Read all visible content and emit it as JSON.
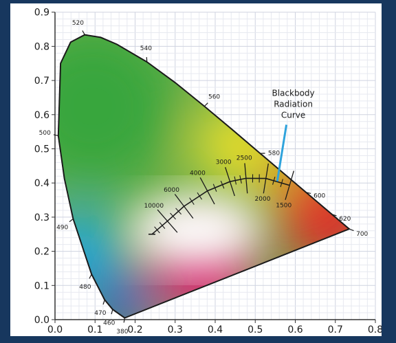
{
  "chart_data": {
    "type": "scatter",
    "title": "",
    "xlabel": "",
    "ylabel": "",
    "xlim": [
      0,
      0.8
    ],
    "ylim": [
      0,
      0.9
    ],
    "grid": true,
    "x_ticks": [
      "0.0",
      "0.1",
      "0.2",
      "0.3",
      "0.4",
      "0.5",
      "0.6",
      "0.7",
      "0.8"
    ],
    "y_ticks": [
      "0.0",
      "0.1",
      "0.2",
      "0.3",
      "0.4",
      "0.5",
      "0.6",
      "0.7",
      "0.8",
      "0.9"
    ],
    "spectral_locus": [
      {
        "label": "380",
        "x": 0.1741,
        "y": 0.005
      },
      {
        "label": "460",
        "x": 0.144,
        "y": 0.0297
      },
      {
        "label": "470",
        "x": 0.1241,
        "y": 0.0578
      },
      {
        "label": "480",
        "x": 0.0913,
        "y": 0.1327
      },
      {
        "label": "490",
        "x": 0.0454,
        "y": 0.295
      },
      {
        "label": "500",
        "x": 0.0082,
        "y": 0.5384
      },
      {
        "label": "520",
        "x": 0.0743,
        "y": 0.8338
      },
      {
        "label": "540",
        "x": 0.2296,
        "y": 0.7543
      },
      {
        "label": "560",
        "x": 0.3731,
        "y": 0.6245
      },
      {
        "label": "580",
        "x": 0.5125,
        "y": 0.4866
      },
      {
        "label": "600",
        "x": 0.627,
        "y": 0.3725
      },
      {
        "label": "620",
        "x": 0.6915,
        "y": 0.3083
      },
      {
        "label": "700",
        "x": 0.7347,
        "y": 0.2653
      }
    ],
    "blackbody_curve": [
      {
        "label": "10000",
        "x": 0.2807,
        "y": 0.2884
      },
      {
        "label": "6000",
        "x": 0.3221,
        "y": 0.3318
      },
      {
        "label": "4000",
        "x": 0.3805,
        "y": 0.3768
      },
      {
        "label": "3000",
        "x": 0.4369,
        "y": 0.4041
      },
      {
        "label": "2500",
        "x": 0.477,
        "y": 0.4137
      },
      {
        "label": "2000",
        "x": 0.5267,
        "y": 0.4133
      },
      {
        "label": "1500",
        "x": 0.5857,
        "y": 0.3931
      }
    ],
    "annotation": {
      "lines": [
        "Blackbody",
        "Radiation",
        "Curve"
      ]
    }
  }
}
